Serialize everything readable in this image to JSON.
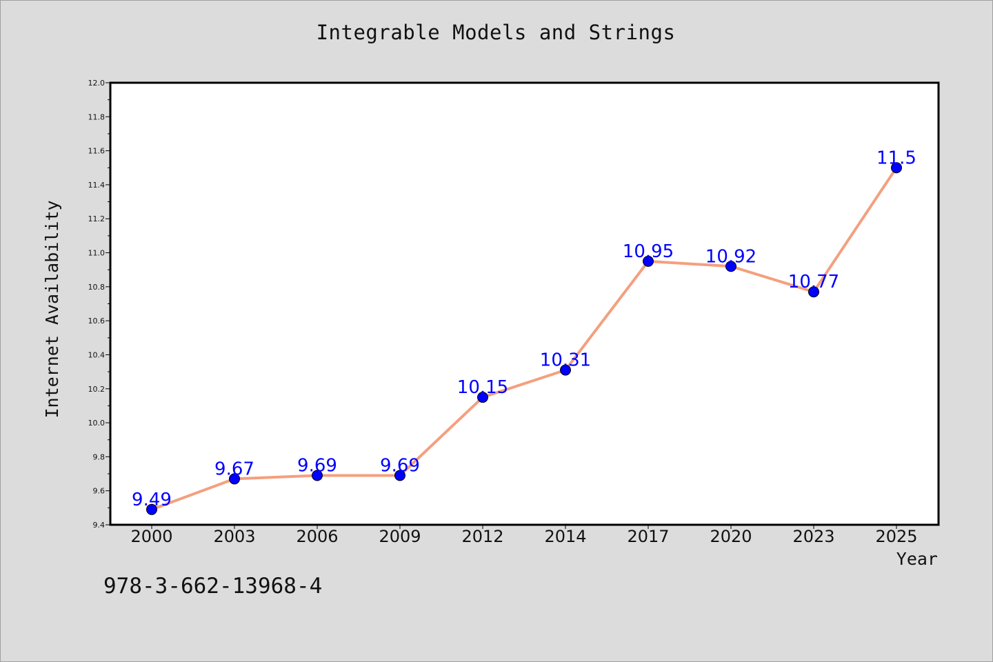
{
  "chart_data": {
    "type": "line",
    "title": "Integrable Models and Strings",
    "xlabel": "Year",
    "ylabel": "Internet Availability",
    "categories": [
      "2000",
      "2003",
      "2006",
      "2009",
      "2012",
      "2014",
      "2017",
      "2020",
      "2023",
      "2025"
    ],
    "series": [
      {
        "values": [
          9.49,
          9.67,
          9.69,
          9.69,
          10.15,
          10.31,
          10.95,
          10.92,
          10.77,
          11.5
        ],
        "data_labels": [
          "9.49",
          "9.67",
          "9.69",
          "9.69",
          "10.15",
          "10.31",
          "10.95",
          "10.92",
          "10.77",
          "11.5"
        ],
        "line_color": "#f4a07e",
        "marker_color": "#0000ff"
      }
    ],
    "ylim": [
      9.4,
      12.0
    ],
    "yticks": [
      "9.4",
      "9.6",
      "9.8",
      "10.0",
      "10.2",
      "10.4",
      "10.6",
      "10.8",
      "11.0",
      "11.2",
      "11.4",
      "11.6",
      "11.8",
      "12.0"
    ],
    "grid": false,
    "legend": "none"
  },
  "footer_text": "978-3-662-13968-4",
  "colors": {
    "background": "#dcdcdc",
    "plot_background": "#ffffff",
    "axis": "#000000"
  }
}
